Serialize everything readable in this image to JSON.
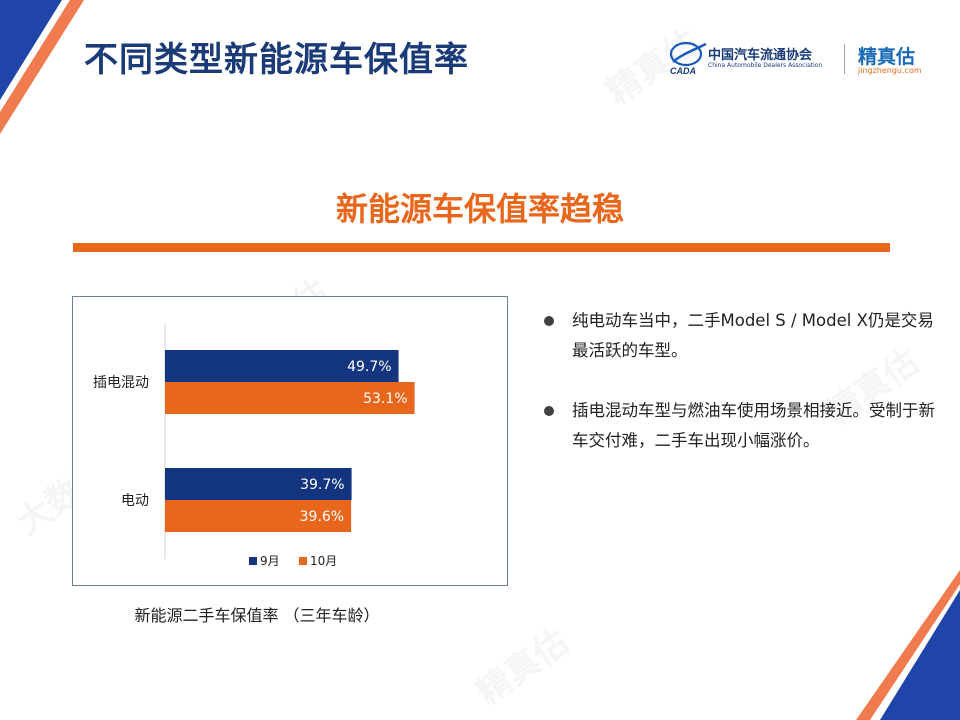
{
  "slide": {
    "title": "不同类型新能源车保值率",
    "section_heading": "新能源车保值率趋稳"
  },
  "logos": {
    "cada_name_cn": "中国汽车流通协会",
    "cada_name_en": "China Automobile Dealers Association",
    "cada_mark_text": "CADA",
    "jzg_name": "精真估",
    "jzg_url": "jingzhengu.com"
  },
  "watermark": {
    "text": "精真估",
    "text2": "大数据"
  },
  "colors": {
    "navy": "#1a3a78",
    "series_sep": "#13347f",
    "series_oct": "#e8671c",
    "accent_orange": "#e8671c",
    "corner_blue": "#1f45a8",
    "corner_orange": "#ef7b4f"
  },
  "chart_caption": "新能源二手车保值率 （三年车龄）",
  "chart_data": {
    "type": "bar",
    "orientation": "horizontal",
    "categories": [
      "插电混动",
      "电动"
    ],
    "series": [
      {
        "name": "9月",
        "values": [
          49.7,
          39.7
        ],
        "labels": [
          "49.7%",
          "39.7%"
        ],
        "color": "#13347f"
      },
      {
        "name": "10月",
        "values": [
          53.1,
          39.6
        ],
        "labels": [
          "53.1%",
          "39.6%"
        ],
        "color": "#e8671c"
      }
    ],
    "xlim": [
      0,
      80
    ],
    "unit": "%",
    "legend_position": "bottom",
    "grid": false
  },
  "bullets": [
    {
      "text": "纯电动车当中，二手Model S / Model X仍是交易最活跃的车型。"
    },
    {
      "text": "插电混动车型与燃油车使用场景相接近。受制于新车交付难，二手车出现小幅涨价。"
    }
  ]
}
